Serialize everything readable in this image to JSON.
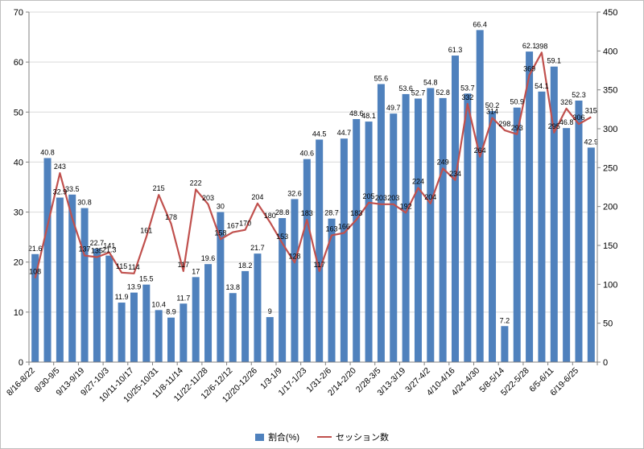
{
  "chart_data": {
    "type": "combo-bar-line",
    "title": "",
    "x_tick_labels": [
      "8/16-8/22",
      "8/30-9/5",
      "9/13-9/19",
      "9/27-10/3",
      "10/11-10/17",
      "10/25-10/31",
      "11/8-11/14",
      "11/22-11/28",
      "12/6-12/12",
      "12/20-12/26",
      "1/3-1/9",
      "1/17-1/23",
      "1/31-2/6",
      "2/14-2/20",
      "2/28-3/5",
      "3/13-3/19",
      "3/27-4/2",
      "4/10-4/16",
      "4/24-4/30",
      "5/8-5/14",
      "5/22-5/28",
      "6/5-6/11",
      "6/19-6/25"
    ],
    "x_label_every": 2,
    "series": [
      {
        "name": "割合(%)",
        "type": "bar",
        "axis": "left",
        "color": "#4F81BD",
        "values": [
          21.6,
          40.8,
          32.9,
          33.5,
          30.8,
          22.7,
          21.3,
          11.9,
          13.9,
          15.5,
          10.4,
          8.9,
          11.7,
          17,
          19.6,
          30,
          13.8,
          18.2,
          21.7,
          9,
          28.8,
          32.6,
          40.6,
          44.5,
          28.7,
          44.7,
          48.6,
          48.1,
          55.6,
          49.7,
          53.6,
          52.7,
          54.8,
          52.8,
          61.3,
          53.7,
          66.4,
          50.2,
          7.2,
          50.9,
          62.1,
          54.1,
          59.1,
          46.8,
          52.3,
          42.9
        ]
      },
      {
        "name": "セッション数",
        "type": "line",
        "axis": "right",
        "color": "#C0504D",
        "values": [
          108,
          175,
          243,
          185,
          137,
          135,
          141,
          115,
          114,
          161,
          215,
          178,
          117,
          222,
          203,
          158,
          167,
          170,
          204,
          180,
          153,
          128,
          183,
          117,
          163,
          166,
          183,
          205,
          203,
          203,
          192,
          224,
          204,
          249,
          234,
          332,
          264,
          314,
          298,
          293,
          369,
          398,
          295,
          326,
          306,
          315
        ],
        "hidden_label_indices": [
          1,
          3
        ]
      }
    ],
    "axis_left": {
      "min": 0,
      "max": 70,
      "ticks": [
        0,
        10,
        20,
        30,
        40,
        50,
        60,
        70
      ]
    },
    "axis_right": {
      "min": 0,
      "max": 450,
      "ticks": [
        0,
        50,
        100,
        150,
        200,
        250,
        300,
        350,
        400,
        450
      ]
    },
    "grid": true,
    "legend_position": "bottom"
  },
  "colors": {
    "bar": "#4F81BD",
    "line": "#C0504D",
    "grid": "#D9D9D9",
    "axis": "#808080",
    "label_text": "#000000",
    "background": "#FFFFFF"
  }
}
